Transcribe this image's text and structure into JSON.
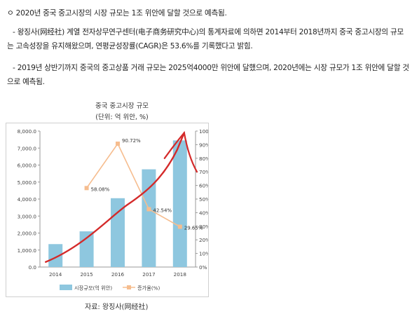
{
  "text": {
    "p1": "ㅇ 2020년 중국 중고시장의 시장 규모는 1조 위안에 달할 것으로 예측됨.",
    "p2": "- 왕징사(网经社) 계열 전자상무연구센터(电子商务研究中心)의 통계자료에 의하면 2014부터 2018년까지 중국 중고시장의 규모는 고속성장을 유지해왔으며, 연평균성장률(CAGR)은 53.6%를 기록했다고 밝힘.",
    "p3": "- 2019년 상반기까지 중국의 중고상품 거래 규모는 2025억4000만 위안에 달했으며, 2020년에는 시장 규모가 1조 위안에 달할 것으로 예측됨."
  },
  "chart_data": {
    "type": "bar+line",
    "title": "중국 중고시장 규모",
    "subtitle": "(단위: 억 위안, %)",
    "categories": [
      "2014",
      "2015",
      "2016",
      "2017",
      "2018"
    ],
    "series": [
      {
        "name": "시장규모(억 위안)",
        "type": "bar",
        "axis": "left",
        "values": [
          1350,
          2100,
          4050,
          5750,
          7450
        ]
      },
      {
        "name": "증가율(%)",
        "type": "line",
        "axis": "right",
        "values": [
          null,
          58.08,
          90.72,
          42.54,
          29.65
        ]
      }
    ],
    "data_labels": [
      "58.08%",
      "90.72%",
      "42.54%",
      "29.65%"
    ],
    "y_left": {
      "min": 0,
      "max": 8000,
      "ticks": [
        "0.0",
        "1,000.0",
        "2,000.0",
        "3,000.0",
        "4,000.0",
        "5,000.0",
        "6,000.0",
        "7,000.0",
        "8,000.0"
      ]
    },
    "y_right": {
      "min": 0,
      "max": 100,
      "ticks": [
        "0%",
        "10%",
        "20%",
        "30%",
        "40%",
        "50%",
        "60%",
        "70%",
        "80%",
        "90%",
        "100%"
      ]
    },
    "legend_position": "bottom",
    "grid": false,
    "colors": {
      "bar": "#8ec7df",
      "line": "#f6bd8f",
      "annotation": "#d42a2a"
    },
    "source": "자료: 왕징사(网经社)"
  }
}
